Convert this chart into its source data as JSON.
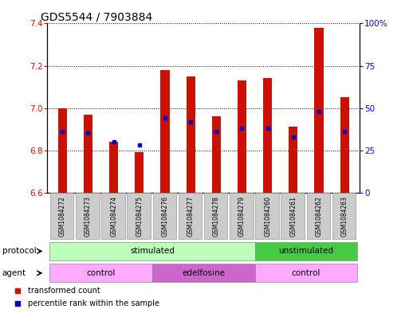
{
  "title": "GDS5544 / 7903884",
  "samples": [
    "GSM1084272",
    "GSM1084273",
    "GSM1084274",
    "GSM1084275",
    "GSM1084276",
    "GSM1084277",
    "GSM1084278",
    "GSM1084279",
    "GSM1084260",
    "GSM1084261",
    "GSM1084262",
    "GSM1084263"
  ],
  "transformed_count": [
    7.0,
    6.97,
    6.84,
    6.79,
    7.18,
    7.15,
    6.96,
    7.13,
    7.14,
    6.91,
    7.38,
    7.05
  ],
  "percentile_rank": [
    36,
    35,
    30,
    28,
    44,
    42,
    36,
    38,
    38,
    33,
    48,
    36
  ],
  "ylim_left": [
    6.6,
    7.4
  ],
  "ylim_right": [
    0,
    100
  ],
  "yticks_left": [
    6.6,
    6.8,
    7.0,
    7.2,
    7.4
  ],
  "yticks_right": [
    0,
    25,
    50,
    75,
    100
  ],
  "bar_color": "#cc1100",
  "dot_color": "#0000cc",
  "protocol_labels": [
    {
      "text": "stimulated",
      "start": 0,
      "end": 7,
      "color": "#bbffbb"
    },
    {
      "text": "unstimulated",
      "start": 8,
      "end": 11,
      "color": "#44cc44"
    }
  ],
  "agent_labels": [
    {
      "text": "control",
      "start": 0,
      "end": 3,
      "color": "#ffaaff"
    },
    {
      "text": "edelfosine",
      "start": 4,
      "end": 7,
      "color": "#cc66cc"
    },
    {
      "text": "control",
      "start": 8,
      "end": 11,
      "color": "#ffaaff"
    }
  ],
  "bar_width": 0.35,
  "dot_size": 12,
  "title_fontsize": 10,
  "tick_fontsize": 7.5,
  "sample_fontsize": 5.5,
  "label_fontsize": 7.5,
  "row_fontsize": 7.5
}
